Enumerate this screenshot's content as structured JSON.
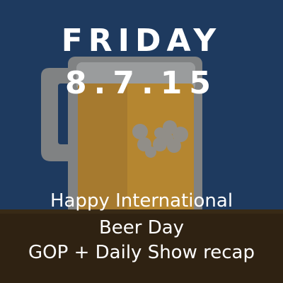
{
  "graphic": {
    "icon": "beer-mug-icon",
    "colors": {
      "background": "#1e3a5f",
      "table": "#2f2212",
      "mug_glass": "#8b8a88",
      "beer": "#c68f2b",
      "text": "#ffffff"
    }
  },
  "header": {
    "day": "FRIDAY",
    "date": "8.7.15"
  },
  "caption": {
    "line1": "Happy International",
    "line2": "Beer Day",
    "line3": "GOP + Daily Show recap"
  }
}
